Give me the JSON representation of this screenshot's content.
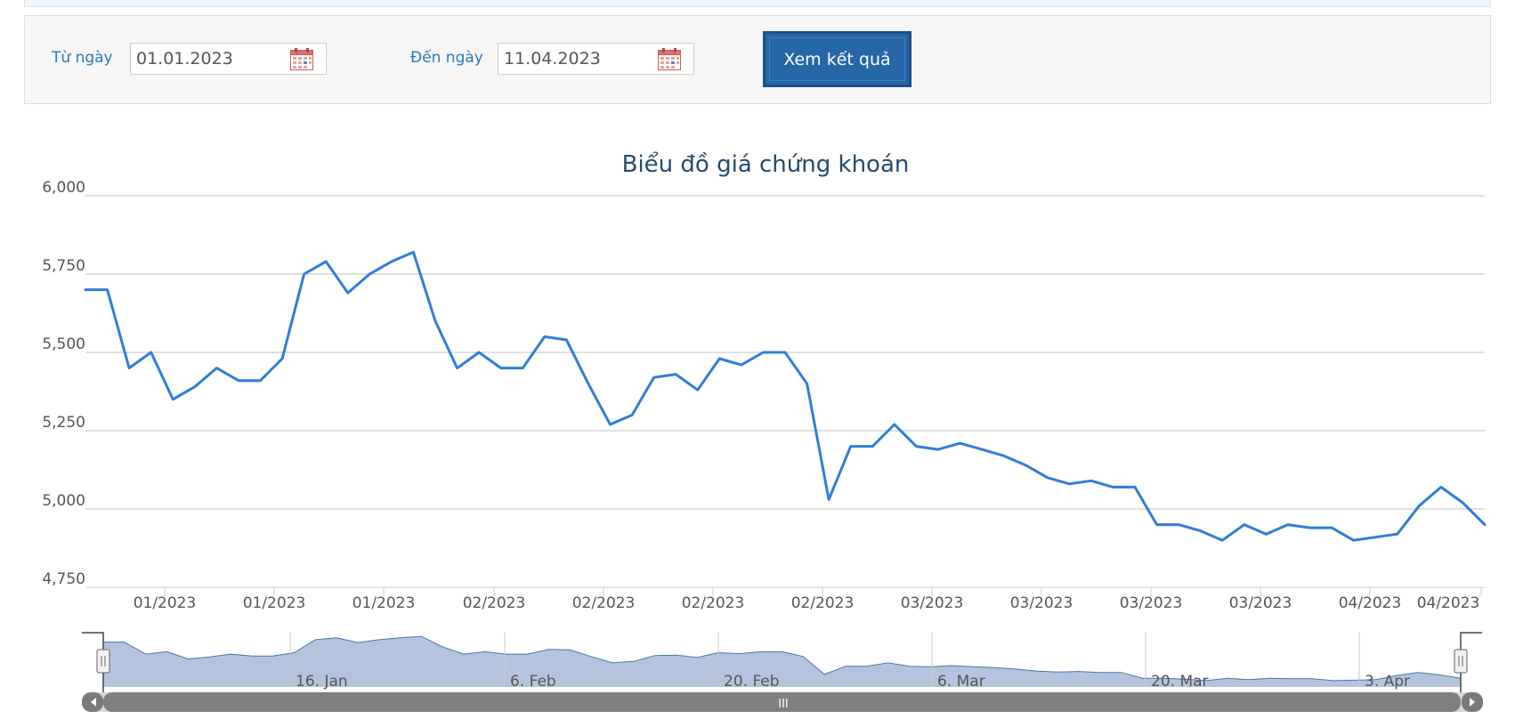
{
  "filter": {
    "from_label": "Từ ngày",
    "from_value": "01.01.2023",
    "to_label": "Đến ngày",
    "to_value": "11.04.2023",
    "submit_label": "Xem kết quả"
  },
  "colors": {
    "line": "#2f7ed8",
    "grid": "#c0c0c0",
    "navigator_fill": "#b4c4dc",
    "navigator_line": "#4a74b0",
    "scrollbar": "#808080"
  },
  "chart_data": {
    "type": "line",
    "title": "Biểu đồ giá chứng khoán",
    "ylim": [
      4750,
      6000
    ],
    "yticks": [
      4750,
      5000,
      5250,
      5500,
      5750,
      6000
    ],
    "ytick_labels": [
      "4,750",
      "5,000",
      "5,250",
      "5,500",
      "5,750",
      "6,000"
    ],
    "xtick_labels": [
      "01/2023",
      "01/2023",
      "01/2023",
      "02/2023",
      "02/2023",
      "02/2023",
      "02/2023",
      "03/2023",
      "03/2023",
      "03/2023",
      "03/2023",
      "04/2023",
      "04/2023"
    ],
    "grid": true,
    "series": [
      {
        "values": [
          5700,
          5700,
          5450,
          5500,
          5350,
          5390,
          5450,
          5410,
          5410,
          5480,
          5750,
          5790,
          5690,
          5750,
          5790,
          5820,
          5600,
          5450,
          5500,
          5450,
          5450,
          5550,
          5540,
          5400,
          5270,
          5300,
          5420,
          5430,
          5380,
          5480,
          5460,
          5500,
          5500,
          5400,
          5030,
          5200,
          5200,
          5270,
          5200,
          5190,
          5210,
          5190,
          5170,
          5140,
          5100,
          5080,
          5090,
          5070,
          5070,
          4950,
          4950,
          4930,
          4900,
          4950,
          4920,
          4950,
          4940,
          4940,
          4900,
          4910,
          4920,
          5010,
          5070,
          5020,
          4950
        ]
      }
    ],
    "navigator": {
      "labels": [
        "16. Jan",
        "6. Feb",
        "20. Feb",
        "6. Mar",
        "20. Mar",
        "3. Apr"
      ],
      "scrollbar_grip": "III"
    }
  }
}
